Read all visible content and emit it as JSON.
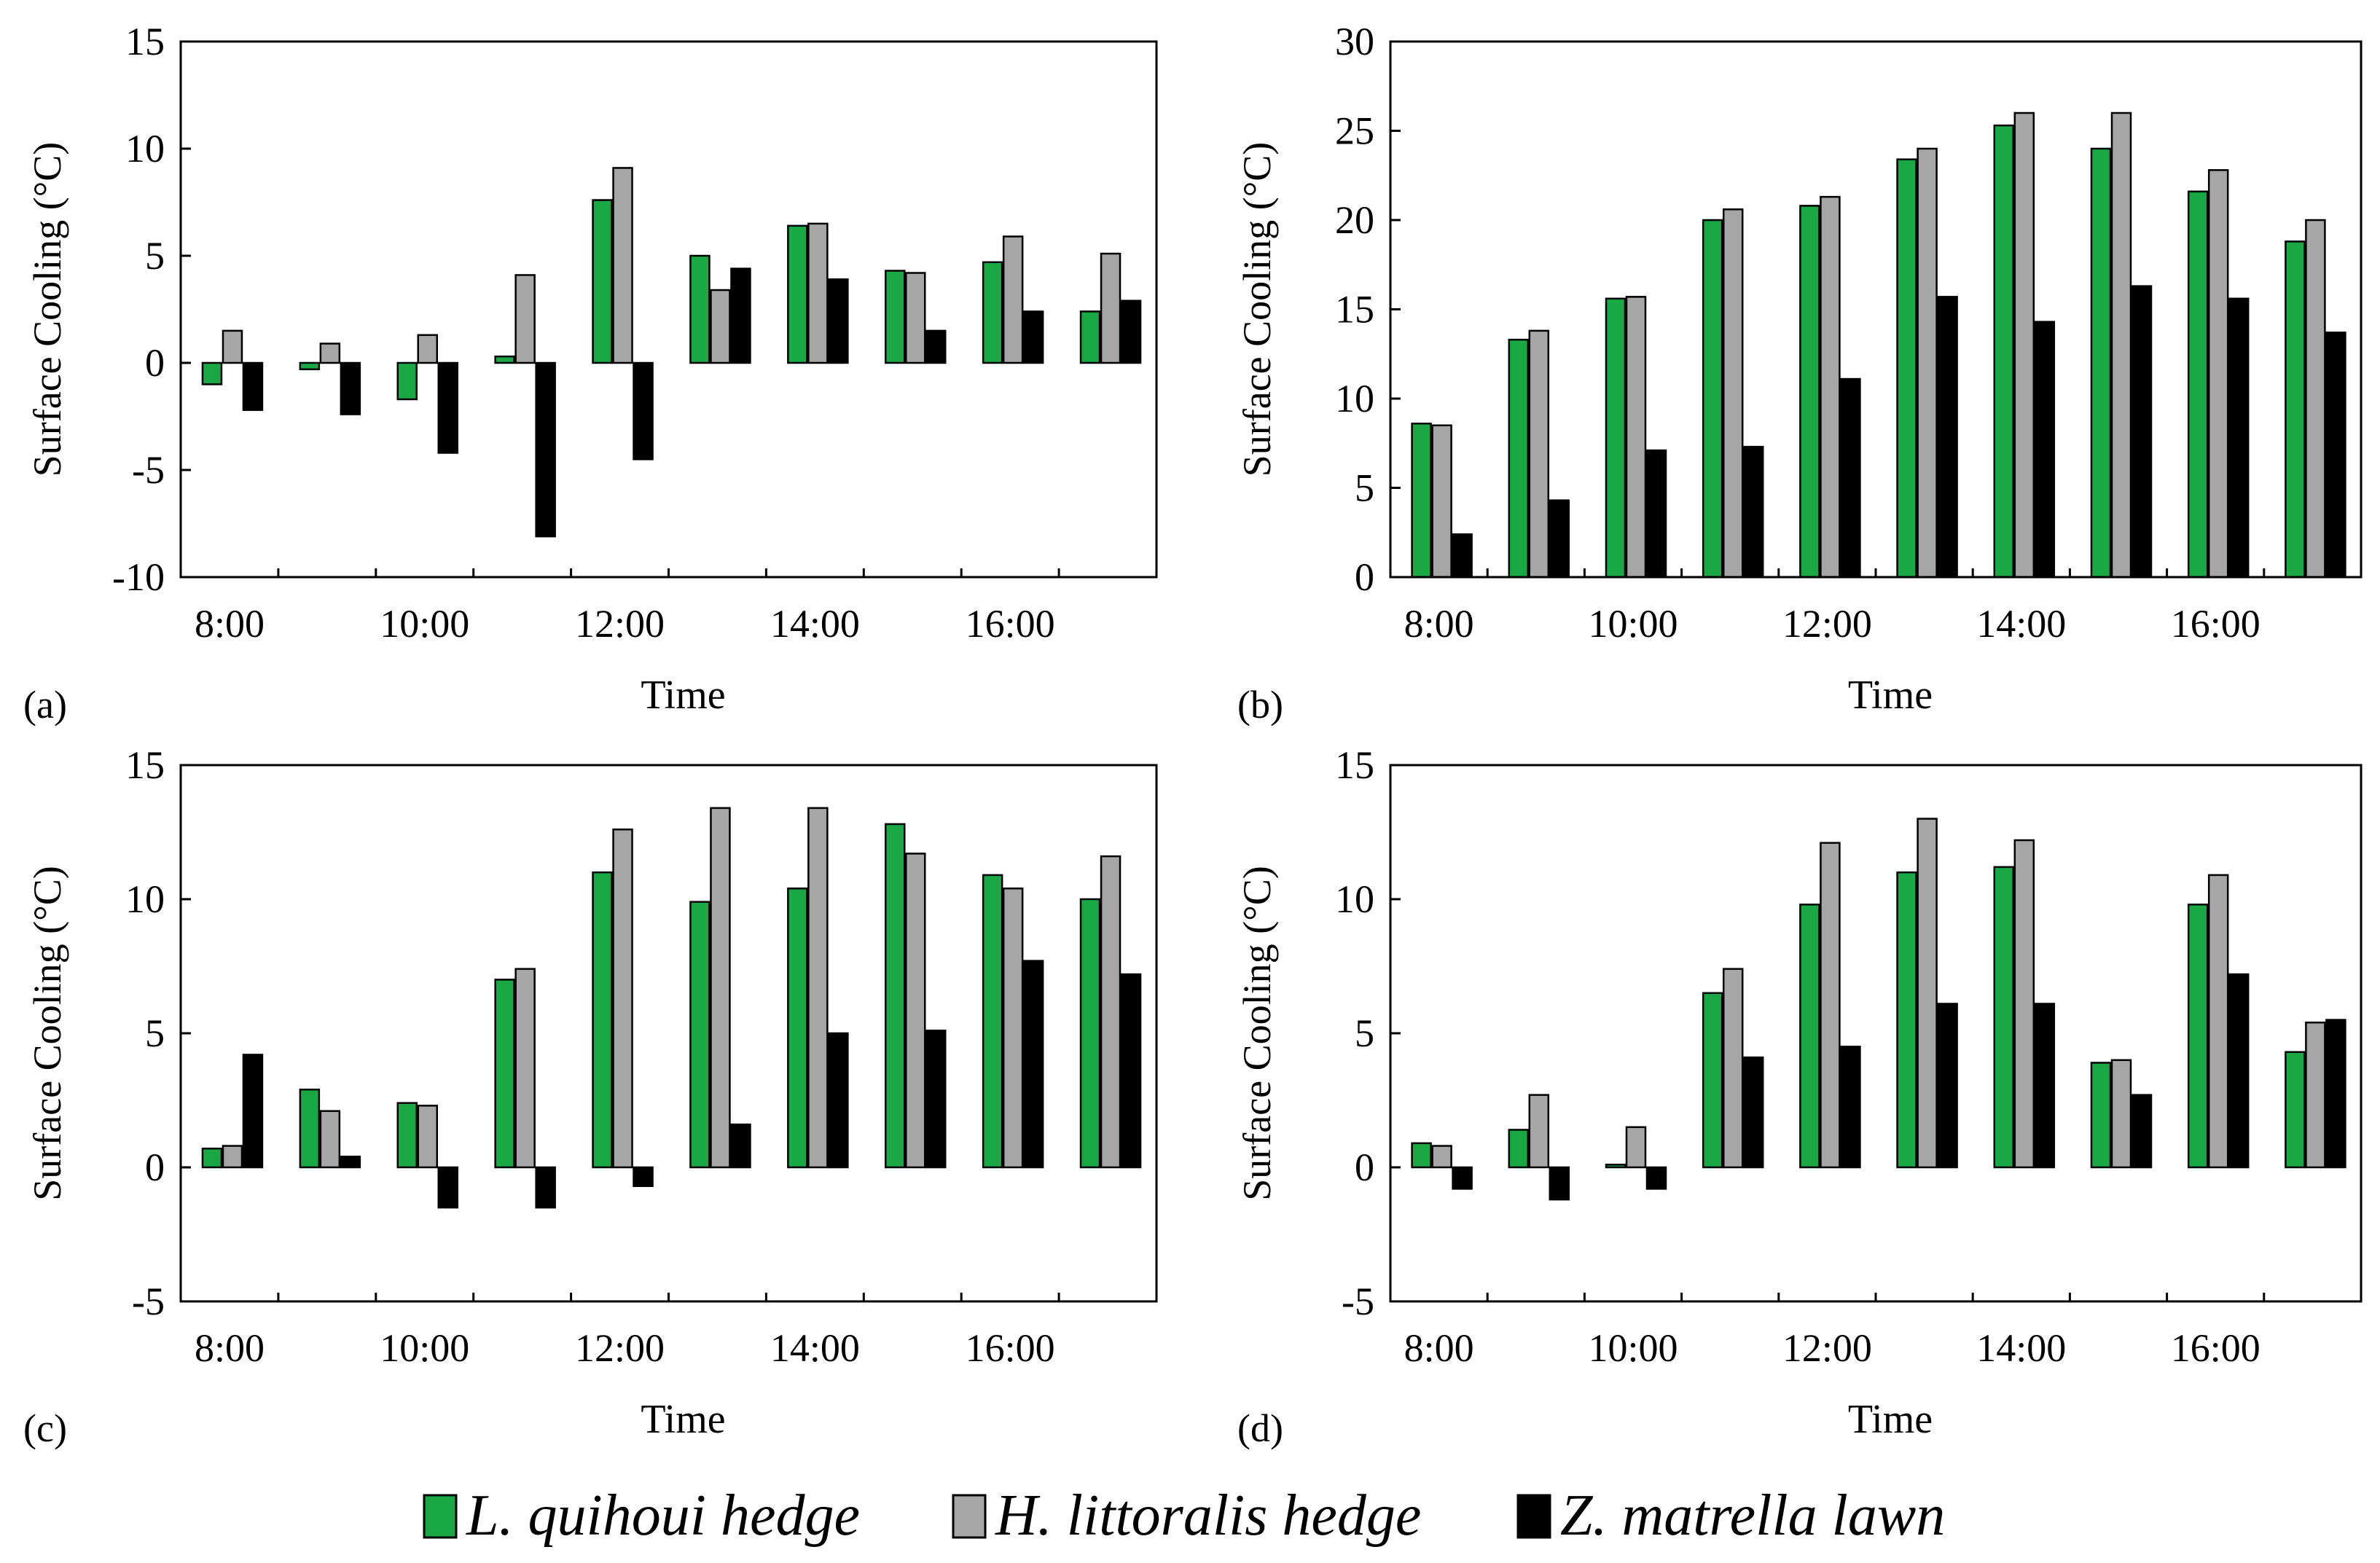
{
  "legend": [
    {
      "label": "L. quihoui hedge",
      "color": "#1aa845"
    },
    {
      "label": "H. littoralis hedge",
      "color": "#a6a6a6"
    },
    {
      "label": "Z. matrella lawn",
      "color": "#000000"
    }
  ],
  "chart_data": [
    {
      "type": "bar",
      "panel_label": "(a)",
      "xlabel": "Time",
      "ylabel": "Surface Cooling  (°C)",
      "ylim": [
        -10,
        15
      ],
      "yticks": [
        -10,
        -5,
        0,
        5,
        10,
        15
      ],
      "categories": [
        "8:00",
        "9:00",
        "10:00",
        "11:00",
        "12:00",
        "13:00",
        "14:00",
        "15:00",
        "16:00",
        "17:00"
      ],
      "xtick_labels": [
        "8:00",
        "10:00",
        "12:00",
        "14:00",
        "16:00"
      ],
      "series": [
        {
          "name": "L. quihoui hedge",
          "values": [
            -1.0,
            -0.3,
            -1.7,
            0.3,
            7.6,
            5.0,
            6.4,
            4.3,
            4.7,
            2.4
          ]
        },
        {
          "name": "H. littoralis hedge",
          "values": [
            1.5,
            0.9,
            1.3,
            4.1,
            9.1,
            3.4,
            6.5,
            4.2,
            5.9,
            5.1
          ]
        },
        {
          "name": "Z. matrella lawn",
          "values": [
            -2.2,
            -2.4,
            -4.2,
            -8.1,
            -4.5,
            4.4,
            3.9,
            1.5,
            2.4,
            2.9
          ]
        }
      ]
    },
    {
      "type": "bar",
      "panel_label": "(b)",
      "xlabel": "Time",
      "ylabel": "Surface Cooling  (°C)",
      "ylim": [
        0,
        30
      ],
      "yticks": [
        0,
        5,
        10,
        15,
        20,
        25,
        30
      ],
      "categories": [
        "8:00",
        "9:00",
        "10:00",
        "11:00",
        "12:00",
        "13:00",
        "14:00",
        "15:00",
        "16:00",
        "17:00"
      ],
      "xtick_labels": [
        "8:00",
        "10:00",
        "12:00",
        "14:00",
        "16:00"
      ],
      "series": [
        {
          "name": "L. quihoui hedge",
          "values": [
            8.6,
            13.3,
            15.6,
            20.0,
            20.8,
            23.4,
            25.3,
            24.0,
            21.6,
            18.8
          ]
        },
        {
          "name": "H. littoralis hedge",
          "values": [
            8.5,
            13.8,
            15.7,
            20.6,
            21.3,
            24.0,
            26.0,
            26.0,
            22.8,
            20.0
          ]
        },
        {
          "name": "Z. matrella lawn",
          "values": [
            2.4,
            4.3,
            7.1,
            7.3,
            11.1,
            15.7,
            14.3,
            16.3,
            15.6,
            13.7
          ]
        }
      ]
    },
    {
      "type": "bar",
      "panel_label": "(c)",
      "xlabel": "Time",
      "ylabel": "Surface Cooling  (°C)",
      "ylim": [
        -5,
        15
      ],
      "yticks": [
        -5,
        0,
        5,
        10,
        15
      ],
      "categories": [
        "8:00",
        "9:00",
        "10:00",
        "11:00",
        "12:00",
        "13:00",
        "14:00",
        "15:00",
        "16:00",
        "17:00"
      ],
      "xtick_labels": [
        "8:00",
        "10:00",
        "12:00",
        "14:00",
        "16:00"
      ],
      "series": [
        {
          "name": "L. quihoui hedge",
          "values": [
            0.7,
            2.9,
            2.4,
            7.0,
            11.0,
            9.9,
            10.4,
            12.8,
            10.9,
            10.0
          ]
        },
        {
          "name": "H. littoralis hedge",
          "values": [
            0.8,
            2.1,
            2.3,
            7.4,
            12.6,
            13.4,
            13.4,
            11.7,
            10.4,
            11.6
          ]
        },
        {
          "name": "Z. matrella lawn",
          "values": [
            4.2,
            0.4,
            -1.5,
            -1.5,
            -0.7,
            1.6,
            5.0,
            5.1,
            7.7,
            7.2
          ]
        }
      ]
    },
    {
      "type": "bar",
      "panel_label": "(d)",
      "xlabel": "Time",
      "ylabel": "Surface Cooling  (°C)",
      "ylim": [
        -5,
        15
      ],
      "yticks": [
        -5,
        0,
        5,
        10,
        15
      ],
      "categories": [
        "8:00",
        "9:00",
        "10:00",
        "11:00",
        "12:00",
        "13:00",
        "14:00",
        "15:00",
        "16:00",
        "17:00"
      ],
      "xtick_labels": [
        "8:00",
        "10:00",
        "12:00",
        "14:00",
        "16:00"
      ],
      "series": [
        {
          "name": "L. quihoui hedge",
          "values": [
            0.9,
            1.4,
            0.1,
            6.5,
            9.8,
            11.0,
            11.2,
            3.9,
            9.8,
            4.3
          ]
        },
        {
          "name": "H. littoralis hedge",
          "values": [
            0.8,
            2.7,
            1.5,
            7.4,
            12.1,
            13.0,
            12.2,
            4.0,
            10.9,
            5.4
          ]
        },
        {
          "name": "Z. matrella lawn",
          "values": [
            -0.8,
            -1.2,
            -0.8,
            4.1,
            4.5,
            6.1,
            6.1,
            2.7,
            7.2,
            5.5
          ]
        }
      ]
    }
  ]
}
